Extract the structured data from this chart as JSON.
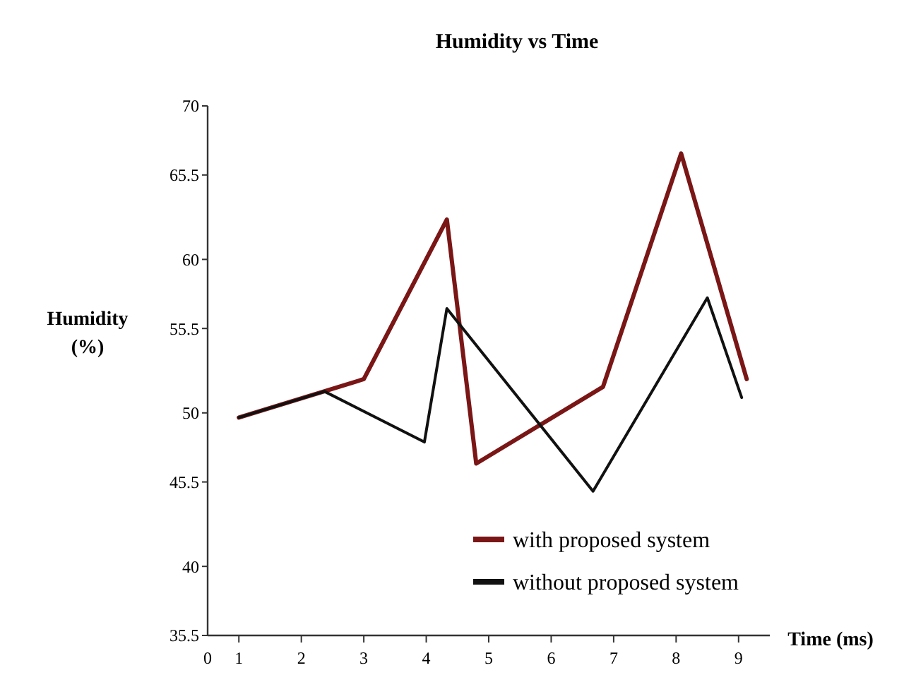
{
  "chart_data": {
    "type": "line",
    "title": "Humidity vs Time",
    "xlabel": "Time (ms)",
    "ylabel": "Humidity\n(%)",
    "xlim": [
      0.5,
      9.5
    ],
    "xticks": [
      {
        "value": 0.5,
        "label": "0"
      },
      1,
      2,
      3,
      4,
      5,
      6,
      7,
      8,
      9
    ],
    "ylim": [
      35.5,
      70
    ],
    "yticks": [
      35.5,
      40,
      45.5,
      50,
      55.5,
      60,
      65.5,
      70
    ],
    "grid": false,
    "legend": "bottom right",
    "marker": "none",
    "line_style": "solid",
    "series": [
      {
        "name": "with proposed system",
        "color": "#7a1616",
        "x": [
          1,
          3,
          4.33,
          4.8,
          6.83,
          8.08,
          9.13
        ],
        "values": [
          49.7,
          52.2,
          62.6,
          46.7,
          51.7,
          66.9,
          52.2
        ]
      },
      {
        "name": "without proposed system",
        "color": "#111111",
        "x": [
          1,
          2.37,
          3.97,
          4.33,
          6.67,
          8.5,
          9.05
        ],
        "values": [
          49.7,
          51.4,
          48.1,
          56.8,
          44.9,
          57.5,
          51.0
        ]
      }
    ]
  }
}
